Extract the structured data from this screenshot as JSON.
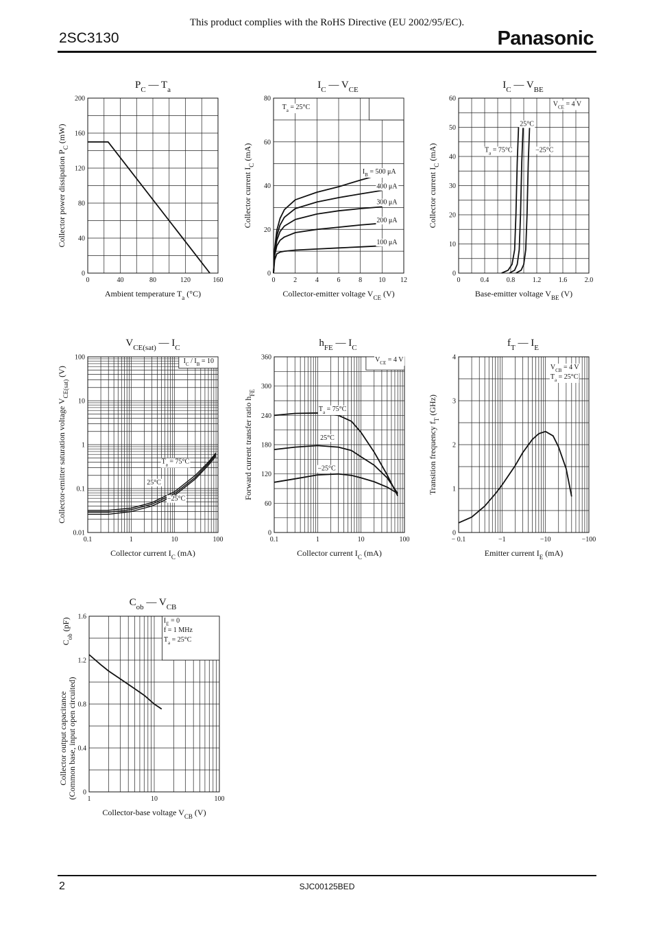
{
  "header": {
    "part_number": "2SC3130",
    "rohs_notice": "This product complies with the RoHS Directive (EU 2002/95/EC).",
    "brand": "Panasonic"
  },
  "footer": {
    "page_number": "2",
    "doc_code": "SJC00125BED"
  },
  "chart_data": [
    {
      "id": "pc_ta",
      "type": "line",
      "title": [
        "P",
        "C",
        " — T",
        "a"
      ],
      "xlabel": [
        "Ambient temperature  T",
        "a",
        "  (°C)"
      ],
      "ylabel": [
        "Collector power dissipation  P",
        "C",
        "  (mW)"
      ],
      "xlim": [
        0,
        160
      ],
      "ylim": [
        0,
        200
      ],
      "xscale": "linear",
      "yscale": "linear",
      "xgrid": [
        0,
        20,
        40,
        60,
        80,
        100,
        120,
        140,
        160
      ],
      "ygrid": [
        0,
        20,
        40,
        60,
        80,
        100,
        120,
        140,
        160,
        180,
        200
      ],
      "xticks": [
        [
          0,
          "0"
        ],
        [
          40,
          "40"
        ],
        [
          80,
          "80"
        ],
        [
          120,
          "120"
        ],
        [
          160,
          "160"
        ]
      ],
      "yticks": [
        [
          0,
          "0"
        ],
        [
          40,
          "40"
        ],
        [
          80,
          "80"
        ],
        [
          120,
          "120"
        ],
        [
          160,
          "160"
        ],
        [
          200,
          "200"
        ]
      ],
      "series": [
        {
          "x": [
            0,
            25,
            150
          ],
          "y": [
            150,
            150,
            0
          ]
        }
      ],
      "annotations": []
    },
    {
      "id": "ic_vce",
      "type": "line",
      "title": [
        "I",
        "C",
        " — V",
        "CE"
      ],
      "xlabel": [
        "Collector-emitter voltage  V",
        "CE",
        "  (V)"
      ],
      "ylabel": [
        "Collector current  I",
        "C",
        "  (mA)"
      ],
      "xlim": [
        0,
        12
      ],
      "ylim": [
        0,
        80
      ],
      "xscale": "linear",
      "yscale": "linear",
      "xgrid": [
        0,
        2,
        4,
        6,
        8,
        10,
        12
      ],
      "ygrid": [
        0,
        10,
        20,
        30,
        40,
        50,
        60,
        70,
        80
      ],
      "xticks": [
        [
          0,
          "0"
        ],
        [
          2,
          "2"
        ],
        [
          4,
          "4"
        ],
        [
          6,
          "6"
        ],
        [
          8,
          "8"
        ],
        [
          10,
          "10"
        ],
        [
          12,
          "12"
        ]
      ],
      "yticks": [
        [
          0,
          "0"
        ],
        [
          20,
          "20"
        ],
        [
          40,
          "40"
        ],
        [
          60,
          "60"
        ],
        [
          80,
          "80"
        ]
      ],
      "series": [
        {
          "name": "100 μA",
          "x": [
            0,
            0.1,
            0.3,
            0.6,
            1,
            2,
            4,
            6,
            8,
            10
          ],
          "y": [
            0,
            6,
            8.8,
            9.6,
            10,
            10.5,
            11,
            11.5,
            12,
            12.5
          ]
        },
        {
          "name": "200 μA",
          "x": [
            0,
            0.1,
            0.3,
            0.6,
            1,
            2,
            4,
            6,
            8,
            10
          ],
          "y": [
            0,
            8,
            12.5,
            15,
            16.5,
            18.5,
            20,
            21,
            22,
            22.8
          ]
        },
        {
          "name": "300 μA",
          "x": [
            0,
            0.1,
            0.3,
            0.6,
            1,
            2,
            4,
            6,
            8,
            10
          ],
          "y": [
            0,
            9,
            15,
            19,
            21.5,
            24.5,
            27,
            28.5,
            29.5,
            30.3
          ]
        },
        {
          "name": "400 μA",
          "x": [
            0,
            0.1,
            0.3,
            0.6,
            1,
            2,
            4,
            6,
            8,
            10
          ],
          "y": [
            0,
            10,
            17,
            22,
            25.5,
            29.5,
            32.5,
            34.5,
            36.2,
            37.8
          ]
        },
        {
          "name": "500 μA",
          "x": [
            0,
            0.1,
            0.3,
            0.6,
            1,
            2,
            4,
            6,
            8,
            10
          ],
          "y": [
            0,
            11,
            19.5,
            25,
            29,
            33.5,
            37,
            39.5,
            42.5,
            45.3
          ]
        }
      ],
      "annotations": [
        {
          "x": 0.8,
          "y": 75,
          "text": [
            "T",
            "a",
            " = 25°C"
          ]
        },
        {
          "x": 8.2,
          "y": 45.5,
          "text": [
            "I",
            "B",
            " = 500 μA"
          ]
        },
        {
          "x": 9.5,
          "y": 38.7,
          "text": [
            "400 μA"
          ]
        },
        {
          "x": 9.5,
          "y": 31.5,
          "text": [
            "300 μA"
          ]
        },
        {
          "x": 9.5,
          "y": 23.2,
          "text": [
            "200 μA"
          ]
        },
        {
          "x": 9.5,
          "y": 13.2,
          "text": [
            "100 μA"
          ]
        }
      ],
      "box_label": {
        "x": 8.8,
        "y": 80,
        "x2": 12,
        "y2": 70
      }
    },
    {
      "id": "ic_vbe",
      "type": "line",
      "title": [
        "I",
        "C",
        " — V",
        "BE"
      ],
      "xlabel": [
        "Base-emitter voltage  V",
        "BE",
        "  (V)"
      ],
      "ylabel": [
        "Collector current  I",
        "C",
        "  (mA)"
      ],
      "xlim": [
        0,
        2.0
      ],
      "ylim": [
        0,
        60
      ],
      "xscale": "linear",
      "yscale": "linear",
      "xgrid": [
        0,
        0.2,
        0.4,
        0.6,
        0.8,
        1.0,
        1.2,
        1.4,
        1.6,
        1.8,
        2.0
      ],
      "ygrid": [
        0,
        5,
        10,
        15,
        20,
        25,
        30,
        35,
        40,
        45,
        50,
        55,
        60
      ],
      "xticks": [
        [
          0,
          "0"
        ],
        [
          0.4,
          "0.4"
        ],
        [
          0.8,
          "0.8"
        ],
        [
          1.2,
          "1.2"
        ],
        [
          1.6,
          "1.6"
        ],
        [
          2.0,
          "2.0"
        ]
      ],
      "yticks": [
        [
          0,
          "0"
        ],
        [
          10,
          "10"
        ],
        [
          20,
          "20"
        ],
        [
          30,
          "30"
        ],
        [
          40,
          "40"
        ],
        [
          50,
          "50"
        ],
        [
          60,
          "60"
        ]
      ],
      "series": [
        {
          "name": "75°C",
          "x": [
            0.66,
            0.76,
            0.82,
            0.86,
            0.88,
            0.9,
            0.92
          ],
          "y": [
            0,
            1,
            3,
            8,
            20,
            38,
            50
          ]
        },
        {
          "name": "25°C",
          "x": [
            0.78,
            0.86,
            0.9,
            0.93,
            0.95,
            0.97,
            0.99
          ],
          "y": [
            0,
            1,
            3,
            8,
            20,
            38,
            50
          ]
        },
        {
          "name": "−25°C",
          "x": [
            0.88,
            0.96,
            1.0,
            1.03,
            1.05,
            1.07,
            1.09
          ],
          "y": [
            0,
            1,
            3,
            8,
            20,
            38,
            50
          ]
        }
      ],
      "annotations": [
        {
          "x": 1.45,
          "y": 57.3,
          "text": [
            "V",
            "CE",
            " = 4 V"
          ]
        },
        {
          "x": 0.94,
          "y": 50.5,
          "text": [
            "25°C"
          ]
        },
        {
          "x": 0.4,
          "y": 41.5,
          "text": [
            "T",
            "a",
            " = 75°C"
          ]
        },
        {
          "x": 1.18,
          "y": 41.5,
          "text": [
            "−25°C"
          ]
        }
      ]
    },
    {
      "id": "vcesat_ic",
      "type": "line",
      "title": [
        "V",
        "CE(sat)",
        " — I",
        "C"
      ],
      "xlabel": [
        "Collector current  I",
        "C",
        "  (mA)"
      ],
      "ylabel": [
        "Collector-emitter saturation voltage  V",
        "CE(sat)",
        "  (V)"
      ],
      "xlim": [
        0.1,
        100
      ],
      "ylim": [
        0.01,
        100
      ],
      "xscale": "log",
      "yscale": "log",
      "xgrid": "log",
      "ygrid": "log",
      "xticks": [
        [
          0.1,
          "0.1"
        ],
        [
          1,
          "1"
        ],
        [
          10,
          "10"
        ],
        [
          100,
          "100"
        ]
      ],
      "yticks": [
        [
          0.01,
          "0.01"
        ],
        [
          0.1,
          "0.1"
        ],
        [
          1,
          "1"
        ],
        [
          10,
          "10"
        ],
        [
          100,
          "100"
        ]
      ],
      "series": [
        {
          "name": "75°C",
          "x": [
            0.1,
            0.3,
            1,
            3,
            10,
            30,
            60,
            90
          ],
          "y": [
            0.032,
            0.032,
            0.036,
            0.048,
            0.085,
            0.2,
            0.4,
            0.65
          ]
        },
        {
          "name": "25°C",
          "x": [
            0.1,
            0.3,
            1,
            3,
            10,
            30,
            60,
            90
          ],
          "y": [
            0.029,
            0.029,
            0.033,
            0.044,
            0.077,
            0.18,
            0.37,
            0.6
          ]
        },
        {
          "name": "−25°C",
          "x": [
            0.1,
            0.3,
            1,
            3,
            10,
            30,
            60,
            90
          ],
          "y": [
            0.026,
            0.026,
            0.03,
            0.04,
            0.07,
            0.165,
            0.34,
            0.55
          ]
        }
      ],
      "annotations": [
        {
          "x": 16,
          "y": 72,
          "text": [
            "I",
            "C",
            " / I",
            "B",
            " = 10"
          ]
        },
        {
          "x": 5,
          "y": 0.37,
          "text": [
            "T",
            "a",
            " = 75°C"
          ]
        },
        {
          "x": 2.3,
          "y": 0.125,
          "text": [
            "25°C"
          ]
        },
        {
          "x": 6.8,
          "y": 0.053,
          "text": [
            "−25°C"
          ]
        }
      ],
      "box_label": {
        "x": 12.5,
        "y": 100,
        "x2": 100,
        "y2": 55
      }
    },
    {
      "id": "hfe_ic",
      "type": "line",
      "title": [
        "h",
        "FE",
        " — I",
        "C"
      ],
      "xlabel": [
        "Collector current  I",
        "C",
        "  (mA)"
      ],
      "ylabel": [
        "Forward current transfer ratio  h",
        "FE",
        ""
      ],
      "xlim": [
        0.1,
        100
      ],
      "ylim": [
        0,
        360
      ],
      "xscale": "log",
      "yscale": "linear",
      "xgrid": "log",
      "ygrid": [
        0,
        30,
        60,
        90,
        120,
        150,
        180,
        210,
        240,
        270,
        300,
        330,
        360
      ],
      "xticks": [
        [
          0.1,
          "0.1"
        ],
        [
          1,
          "1"
        ],
        [
          10,
          "10"
        ],
        [
          100,
          "100"
        ]
      ],
      "yticks": [
        [
          0,
          "0"
        ],
        [
          60,
          "60"
        ],
        [
          120,
          "120"
        ],
        [
          180,
          "180"
        ],
        [
          240,
          "240"
        ],
        [
          300,
          "300"
        ],
        [
          360,
          "360"
        ]
      ],
      "series": [
        {
          "name": "75°C",
          "x": [
            0.1,
            0.3,
            1,
            3,
            6,
            10,
            20,
            40,
            70
          ],
          "y": [
            240,
            244,
            245,
            240,
            228,
            205,
            165,
            118,
            75
          ]
        },
        {
          "name": "25°C",
          "x": [
            0.1,
            0.3,
            1,
            3,
            6,
            10,
            20,
            40,
            70
          ],
          "y": [
            170,
            175,
            178,
            175,
            168,
            155,
            138,
            112,
            80
          ]
        },
        {
          "name": "−25°C",
          "x": [
            0.1,
            0.3,
            1,
            3,
            6,
            10,
            20,
            40,
            70
          ],
          "y": [
            103,
            110,
            118,
            120,
            117,
            112,
            104,
            93,
            80
          ]
        }
      ],
      "annotations": [
        {
          "x": 21,
          "y": 350,
          "text": [
            "V",
            "CE",
            " = 4 V"
          ]
        },
        {
          "x": 1.06,
          "y": 249,
          "text": [
            "T",
            "a",
            " = 75°C"
          ]
        },
        {
          "x": 1.15,
          "y": 190,
          "text": [
            "25°C"
          ]
        },
        {
          "x": 1.0,
          "y": 127,
          "text": [
            "−25°C"
          ]
        }
      ],
      "box_label": {
        "x": 13,
        "y": 360,
        "x2": 100,
        "y2": 333
      }
    },
    {
      "id": "ft_ie",
      "type": "line",
      "title": [
        "f",
        "T",
        " — I",
        "E"
      ],
      "xlabel": [
        "Emitter current  I",
        "E",
        "  (mA)"
      ],
      "ylabel": [
        "Transition frequency  f",
        "T",
        "  (GHz)"
      ],
      "xlim": [
        0.1,
        100
      ],
      "ylim": [
        0,
        4
      ],
      "xscale": "log",
      "yscale": "linear",
      "xgrid": "log",
      "ygrid": [
        0,
        0.5,
        1,
        1.5,
        2,
        2.5,
        3,
        3.5,
        4
      ],
      "xticks": [
        [
          0.1,
          "− 0.1"
        ],
        [
          1,
          "−1"
        ],
        [
          10,
          "−10"
        ],
        [
          100,
          "−100"
        ]
      ],
      "yticks": [
        [
          0,
          "0"
        ],
        [
          1,
          "1"
        ],
        [
          2,
          "2"
        ],
        [
          3,
          "3"
        ],
        [
          4,
          "4"
        ]
      ],
      "series": [
        {
          "x": [
            0.1,
            0.2,
            0.4,
            0.7,
            1,
            2,
            3,
            5,
            7,
            10,
            15,
            20,
            30,
            40
          ],
          "y": [
            0.22,
            0.35,
            0.6,
            0.88,
            1.08,
            1.52,
            1.82,
            2.12,
            2.25,
            2.3,
            2.2,
            1.95,
            1.45,
            0.82
          ]
        }
      ],
      "annotations": [
        {
          "x": 13,
          "y": 3.72,
          "text": [
            "V",
            "CB",
            " = 4 V"
          ]
        },
        {
          "x": 13,
          "y": 3.5,
          "text": [
            "T",
            "a",
            " = 25°C"
          ]
        }
      ]
    },
    {
      "id": "cob_vcb",
      "type": "line",
      "title": [
        "C",
        "ob",
        " — V",
        "CB"
      ],
      "xlabel": [
        "Collector-base voltage  V",
        "CB",
        "  (V)"
      ],
      "ylabel": [
        "Collector output capacitance",
        "(Common base, input open circuited)",
        "C",
        "ob",
        "  (pF)"
      ],
      "xlim": [
        1,
        100
      ],
      "ylim": [
        0,
        1.6
      ],
      "xscale": "log",
      "yscale": "linear",
      "xgrid": "log",
      "ygrid": [
        0,
        0.2,
        0.4,
        0.6,
        0.8,
        1.0,
        1.2,
        1.4,
        1.6
      ],
      "xticks": [
        [
          1,
          "1"
        ],
        [
          10,
          "10"
        ],
        [
          100,
          "100"
        ]
      ],
      "yticks": [
        [
          0,
          "0"
        ],
        [
          0.4,
          "0.4"
        ],
        [
          0.8,
          "0.8"
        ],
        [
          1.2,
          "1.2"
        ],
        [
          1.6,
          "1.6"
        ]
      ],
      "series": [
        {
          "x": [
            1,
            1.5,
            2,
            3,
            5,
            7,
            10,
            13
          ],
          "y": [
            1.25,
            1.16,
            1.1,
            1.03,
            0.94,
            0.88,
            0.8,
            0.755
          ]
        }
      ],
      "annotations": [
        {
          "x": 14,
          "y": 1.54,
          "text": [
            "I",
            "E",
            " = 0"
          ]
        },
        {
          "x": 14,
          "y": 1.455,
          "text": [
            "f = 1 MHz"
          ]
        },
        {
          "x": 14,
          "y": 1.37,
          "text": [
            "T",
            "a",
            " = 25°C"
          ]
        }
      ],
      "box_label": {
        "x": 13.2,
        "y": 1.6,
        "x2": 100,
        "y2": 1.2
      }
    }
  ]
}
